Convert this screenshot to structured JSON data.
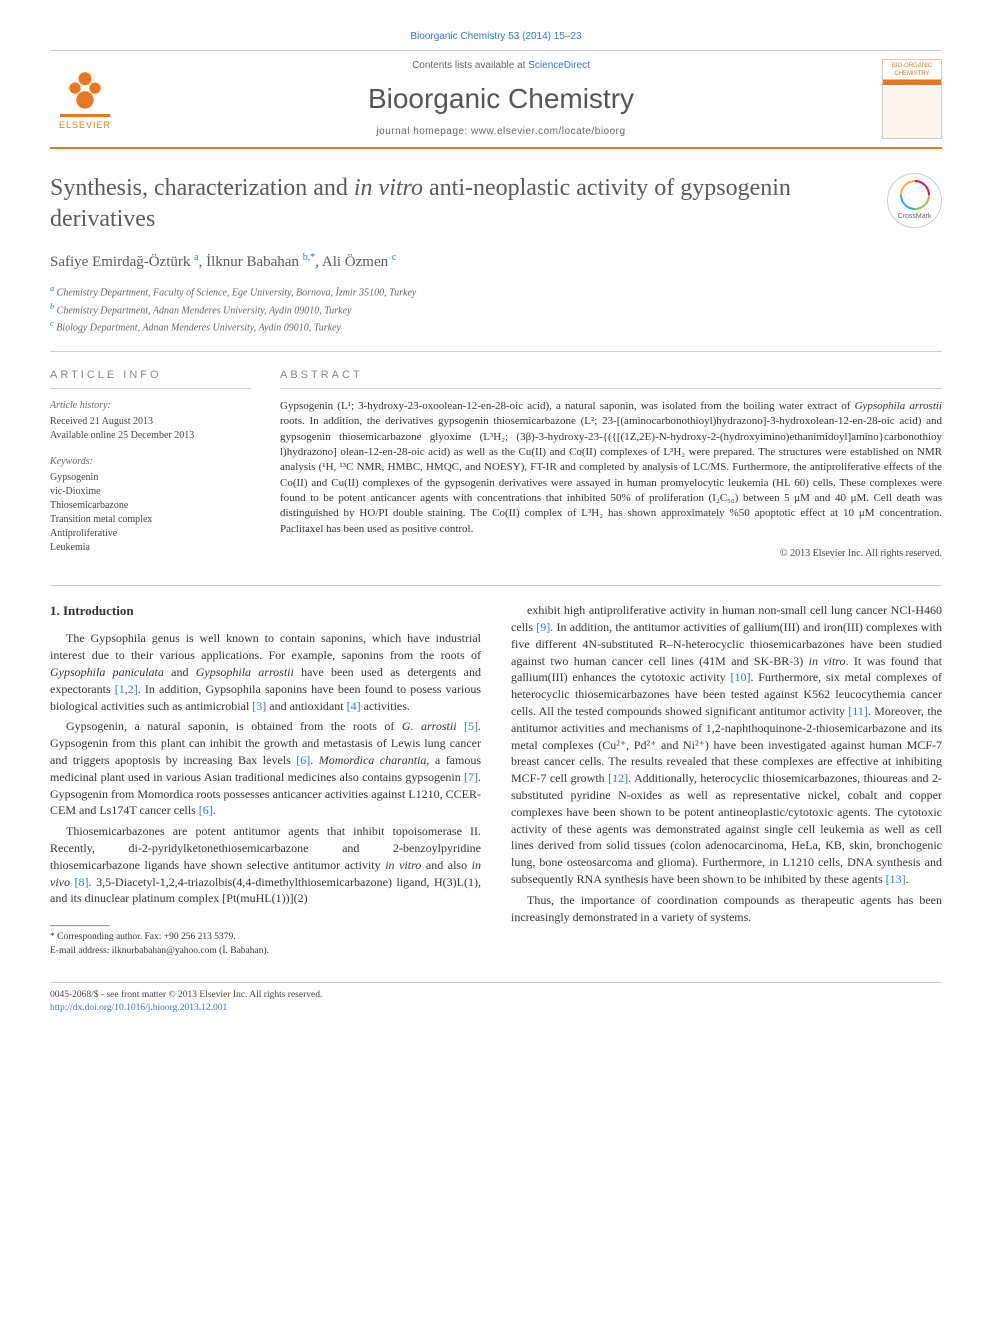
{
  "citation": "Bioorganic Chemistry 53 (2014) 15–23",
  "header": {
    "publisher": "ELSEVIER",
    "contents_prefix": "Contents lists available at ",
    "contents_link": "ScienceDirect",
    "journal": "Bioorganic Chemistry",
    "homepage_prefix": "journal homepage: ",
    "homepage_url": "www.elsevier.com/locate/bioorg",
    "cover_text": "BIO-ORGANIC CHEMISTRY"
  },
  "title_pre": "Synthesis, characterization and ",
  "title_italic": "in vitro",
  "title_post": " anti-neoplastic activity of gypsogenin derivatives",
  "crossmark": "CrossMark",
  "authors_html": "Safiye Emirdağ-Öztürk <sup>a</sup>, İlknur Babahan <sup>b,*</sup>, Ali Özmen <sup>c</sup>",
  "affiliations": {
    "a": "Chemistry Department, Faculty of Science, Ege University, Bornova, İzmir 35100, Turkey",
    "b": "Chemistry Department, Adnan Menderes University, Aydin 09010, Turkey",
    "c": "Biology Department, Adnan Menderes University, Aydin 09010, Turkey"
  },
  "article_info": {
    "heading": "ARTICLE INFO",
    "history_label": "Article history:",
    "received": "Received 21 August 2013",
    "online": "Available online 25 December 2013",
    "keywords_label": "Keywords:",
    "keywords": [
      "Gypsogenin",
      "vic-Dioxime",
      "Thiosemicarbazone",
      "Transition metal complex",
      "Antiproliferative",
      "Leukemia"
    ]
  },
  "abstract": {
    "heading": "ABSTRACT",
    "text": "Gypsogenin (L¹; 3-hydroxy-23-oxoolean-12-en-28-oic acid), a natural saponin, was isolated from the boiling water extract of Gypsophila arrostii roots. In addition, the derivatives gypsogenin thiosemicarbazone (L²; 23-[(aminocarbonothioy​l)hydrazono]-3-hydroxolean-12-en-28-oic acid) and gypsogenin thiosemicarbazone glyoxime (L³H₂; (3β)-3-hydroxy-23-{({[(1Z,2E)-N-hydroxy-2-(hydroxyimino)ethanimidoyl]amino}carbon​othioy​l)hydrazono] olean-12-en-28-oic acid) as well as the Cu(II) and Co(II) complexes of L³H₂ were prepared. The structures were established on NMR analysis (¹H, ¹³C NMR, HMBC, HMQC, and NOESY), FT-IR and completed by analysis of LC/MS. Furthermore, the antiproliferative effects of the Co(II) and Cu(II) complexes of the gypsogenin derivatives were assay​ed in human promyelocytic leukemia (HL 60) cells. These complexes were found to be potent anticancer agents with concentrations that inhibited 50% of proliferation (I₂C₅₀) between 5 μM and 40 μM. Cell death was distinguished by HO/PI double staining. The Co(II) complex of L³H₂ has shown approximately %50 apoptotic effect at 10 μM concentration. Paclitaxel has been used as positive control.",
    "copyright": "© 2013 Elsevier Inc. All rights reserved."
  },
  "section1_heading": "1. Introduction",
  "p1": "The Gypsophila genus is well known to contain saponins, which have industrial interest due to their various applications. For example, saponins from the roots of Gypsophila paniculata and Gypsophila arrostii have been used as detergents and expectorants [1,2]. In addition, Gypsophila saponins have been found to posess various biological activities such as antimicrobial [3] and antioxidant [4] activities.",
  "p2": "Gypsogenin, a natural saponin, is obtained from the roots of G. arrostii [5]. Gypsogenin from this plant can inhibit the growth and metastasis of Lewis lung cancer and triggers apoptosis by increasing Bax levels [6]. Momordica charantia, a famous medicinal plant used in various Asian traditional medicines also contains gypsogenin [7]. Gypsogenin from Momordica roots possesses anticancer activities against L1210, CCER-CEM and Ls174T cancer cells [6].",
  "p3": "Thiosemicarbazones are potent antitumor agents that inhibit topoisomerase II. Recently, di-2-pyridylketonethiosemicarbazone and 2-benzoylpyridine thiosemicarbazone ligands have shown selective antitumor activity in vitro and also in vivo [8]. 3,5-Diacetyl-1,2,4-triazolbis(4,4-dimethylthiosemicarbazone) ligand, H(3)L(1), and its dinuclear platinum complex [Pt(muHL(1))](2)",
  "p4": "exhibit high antiproliferative activity in human non-small cell lung cancer NCI-H460 cells [9]. In addition, the antitumor activities of gallium(III) and iron(III) complexes with five different 4N-substituted R–N-heterocyclic thiosemicarbazones have been studied against two human cancer cell lines (41M and SK-BR-3) in vitro. It was found that gallium(III) enhances the cytotoxic activity [10]. Furthermore, six metal complexes of heterocyclic thiosemicarbazones have been tested against K562 leucocythemia cancer cells. All the tested compounds showed significant antitumor activity [11]. Moreover, the antitumor activities and mechanisms of 1,2-naphthoquinone-2-thiosemicarbazone and its metal complexes (Cu²⁺, Pd²⁺ and Ni²⁺) have been investigated against human MCF-7 breast cancer cells. The results revealed that these complexes are effective at inhibiting MCF-7 cell growth [12]. Additionally, heterocyclic thiosemicarbazones, thioureas and 2-substituted pyridine N-oxides as well as representative nickel, cobalt and copper complexes have been shown to be potent antineoplastic/cytotoxic agents. The cytotoxic activity of these agents was demonstrated against single cell leukemia as well as cell lines derived from solid tissues (colon adenocarcinoma, HeLa, KB, skin, bronchogenic lung, bone osteosarcoma and glioma). Furthermore, in L1210 cells, DNA synthesis and subsequently RNA synthesis have been shown to be inhibited by these agents [13].",
  "p5": "Thus, the importance of coordination compounds as therapeutic agents has been increasingly demonstrated in a variety of systems.",
  "footer": {
    "corr": "* Corresponding author. Fax: +90 256 213 5379.",
    "email_label": "E-mail address: ",
    "email": "ilknurbabahan@yahoo.com",
    "email_name": " (İ. Babahan).",
    "issn": "0045-2068/$ - see front matter © 2013 Elsevier Inc. All rights reserved.",
    "doi": "http://dx.doi.org/10.1016/j.bioorg.2013.12.001"
  }
}
